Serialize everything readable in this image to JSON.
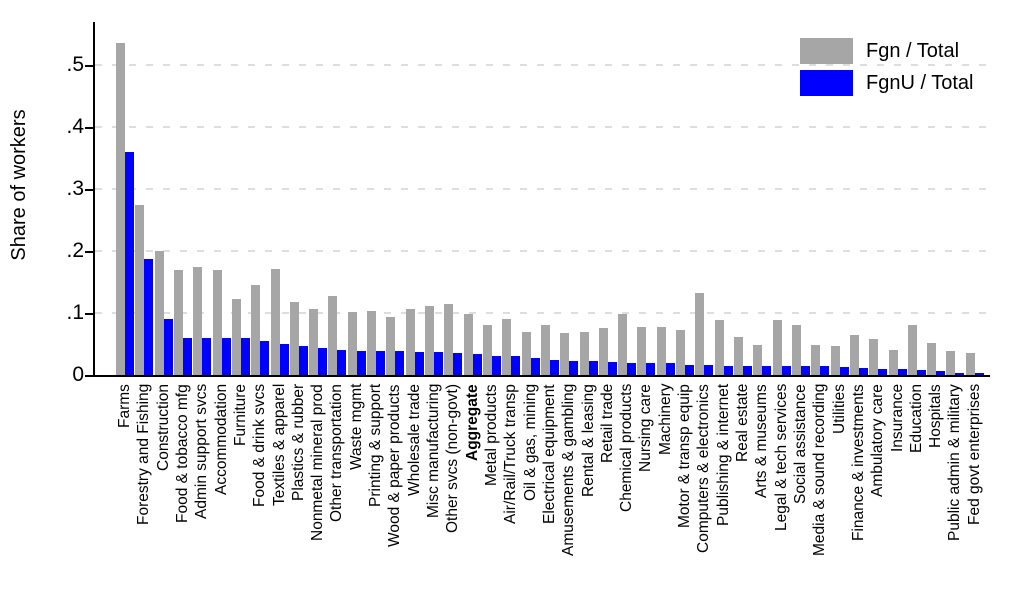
{
  "figure": {
    "background": "#ffffff",
    "ylabel": "Share of workers"
  },
  "chart_data": {
    "type": "bar",
    "title": "",
    "xlabel": "",
    "ylabel": "Share of workers",
    "ylim": [
      0,
      0.56
    ],
    "yticks": [
      0,
      0.1,
      0.2,
      0.3,
      0.4,
      0.5
    ],
    "ytick_labels": [
      "0",
      ".1",
      ".2",
      ".3",
      ".4",
      ".5"
    ],
    "grid": "horizontal dashed gridlines at y ticks",
    "gridline_color": "#dedede",
    "legend_position": "top-right",
    "bar_arrangement": "paired, two series side by side per category",
    "x_label_rotation": "90 degrees, reading bottom to top",
    "bold_category": "Aggregate",
    "categories": [
      "Farms",
      "Forestry and Fishing",
      "Construction",
      "Food & tobacco mfg",
      "Admin support svcs",
      "Accommodation",
      "Furniture",
      "Food & drink svcs",
      "Textiles & apparel",
      "Plastics & rubber",
      "Nonmetal mineral prod",
      "Other transportation",
      "Waste mgmt",
      "Printing & support",
      "Wood & paper products",
      "Wholesale trade",
      "Misc manufacturing",
      "Other svcs (non-govt)",
      "Aggregate",
      "Metal products",
      "Air/Rail/Truck transp",
      "Oil & gas, mining",
      "Electrical equipment",
      "Amusements & gambling",
      "Rental & leasing",
      "Retail trade",
      "Chemical products",
      "Nursing care",
      "Machinery",
      "Motor & transp equip",
      "Computers & electronics",
      "Publishing & internet",
      "Real estate",
      "Arts & museums",
      "Legal & tech services",
      "Social assistance",
      "Media & sound recording",
      "Utilities",
      "Finance & investments",
      "Ambulatory care",
      "Insurance",
      "Education",
      "Hospitals",
      "Public admin & military",
      "Fed govt enterprises"
    ],
    "series": [
      {
        "name": "Fgn / Total",
        "color": "#a6a6a6",
        "values": [
          0.536,
          0.275,
          0.2,
          0.169,
          0.175,
          0.17,
          0.122,
          0.145,
          0.171,
          0.118,
          0.106,
          0.127,
          0.101,
          0.103,
          0.093,
          0.106,
          0.112,
          0.114,
          0.098,
          0.08,
          0.09,
          0.07,
          0.081,
          0.068,
          0.07,
          0.076,
          0.099,
          0.077,
          0.078,
          0.072,
          0.132,
          0.088,
          0.062,
          0.049,
          0.089,
          0.08,
          0.049,
          0.047,
          0.065,
          0.058,
          0.041,
          0.081,
          0.051,
          0.039,
          0.036
        ]
      },
      {
        "name": "FgnU / Total",
        "color": "#0000ff",
        "values": [
          0.36,
          0.187,
          0.091,
          0.06,
          0.06,
          0.059,
          0.059,
          0.055,
          0.05,
          0.047,
          0.043,
          0.04,
          0.039,
          0.038,
          0.038,
          0.037,
          0.037,
          0.036,
          0.034,
          0.031,
          0.03,
          0.027,
          0.024,
          0.023,
          0.022,
          0.021,
          0.02,
          0.019,
          0.019,
          0.017,
          0.016,
          0.015,
          0.015,
          0.015,
          0.015,
          0.014,
          0.014,
          0.013,
          0.011,
          0.01,
          0.009,
          0.008,
          0.006,
          0.004,
          0.003
        ]
      }
    ]
  }
}
